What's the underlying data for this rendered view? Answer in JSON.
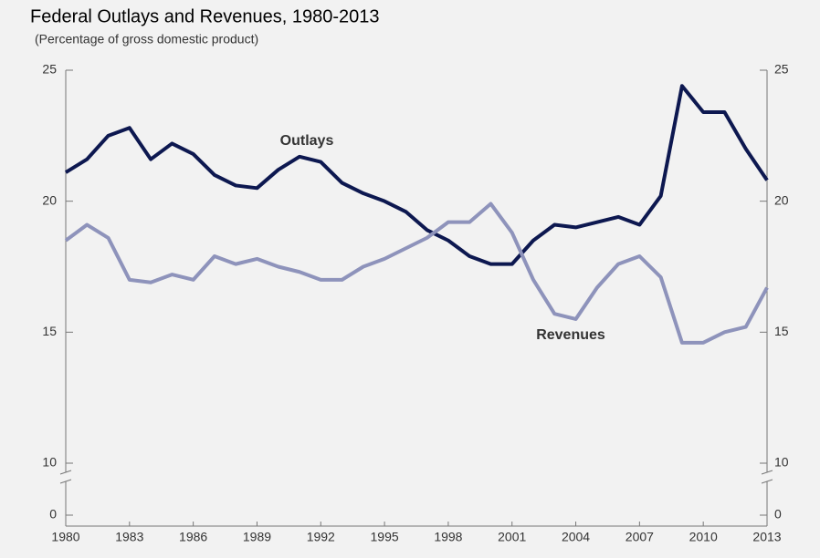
{
  "chart_data": {
    "type": "line",
    "title": "Federal Outlays and Revenues, 1980-2013",
    "subtitle": "(Percentage of gross domestic product)",
    "x": [
      1980,
      1981,
      1982,
      1983,
      1984,
      1985,
      1986,
      1987,
      1988,
      1989,
      1990,
      1991,
      1992,
      1993,
      1994,
      1995,
      1996,
      1997,
      1998,
      1999,
      2000,
      2001,
      2002,
      2003,
      2004,
      2005,
      2006,
      2007,
      2008,
      2009,
      2010,
      2011,
      2012,
      2013
    ],
    "series": [
      {
        "name": "Outlays",
        "color": "#0d1850",
        "values": [
          21.1,
          21.6,
          22.5,
          22.8,
          21.6,
          22.2,
          21.8,
          21.0,
          20.6,
          20.5,
          21.2,
          21.7,
          21.5,
          20.7,
          20.3,
          20.0,
          19.6,
          18.9,
          18.5,
          17.9,
          17.6,
          17.6,
          18.5,
          19.1,
          19.0,
          19.2,
          19.4,
          19.1,
          20.2,
          24.4,
          23.4,
          23.4,
          22.0,
          20.8
        ]
      },
      {
        "name": "Revenues",
        "color": "#8e93bb",
        "values": [
          18.5,
          19.1,
          18.6,
          17.0,
          16.9,
          17.2,
          17.0,
          17.9,
          17.6,
          17.8,
          17.5,
          17.3,
          17.0,
          17.0,
          17.5,
          17.8,
          18.2,
          18.6,
          19.2,
          19.2,
          19.9,
          18.8,
          17.0,
          15.7,
          15.5,
          16.7,
          17.6,
          17.9,
          17.1,
          14.6,
          14.6,
          15.0,
          15.2,
          16.7
        ]
      }
    ],
    "xlim": [
      1980,
      2013
    ],
    "xticks": [
      1980,
      1983,
      1986,
      1989,
      1992,
      1995,
      1998,
      2001,
      2004,
      2007,
      2010,
      2013
    ],
    "ylim": [
      10,
      25
    ],
    "yticks": [
      0,
      10,
      15,
      20,
      25
    ],
    "y2lim": [
      10,
      25
    ],
    "y2ticks": [
      0,
      10,
      15,
      20,
      25
    ],
    "axis_break": true,
    "grid": false
  }
}
